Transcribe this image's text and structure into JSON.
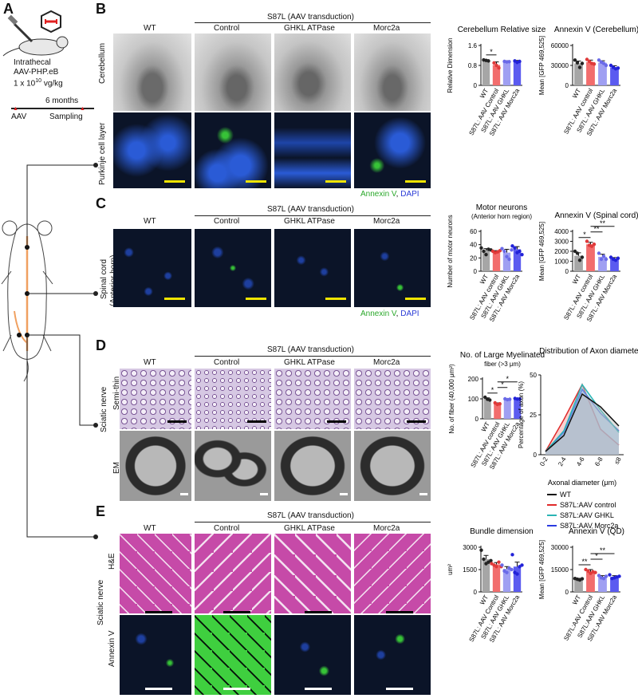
{
  "panel_letters": [
    "A",
    "B",
    "C",
    "D",
    "E"
  ],
  "panel_a": {
    "route": "Intrathecal",
    "vector": "AAV-PHP.eB",
    "dose_prefix": "1 x 10",
    "dose_exp": "10",
    "dose_unit": " vg/kg",
    "duration": "6 months",
    "start_label": "AAV",
    "end_label": "Sampling"
  },
  "group_header": "S87L (AAV transduction)",
  "column_headers": [
    "WT",
    "Control",
    "GHKL ATPase",
    "Morc2a"
  ],
  "rows": {
    "cerebellum": "Cerebellum",
    "purkinje": "Purkinje cell layer",
    "spinal_cord": "Spinal cord",
    "anterior_horn": "(Anterior horn)",
    "sciatic_nerve": "Sciatic nerve",
    "semi_thin": "Semi-thin",
    "em": "EM",
    "he": "H&E",
    "annexin": "Annexin V"
  },
  "stain_legend": {
    "annexin": "Annexin V",
    "sep": ",",
    "dapi": "DAPI"
  },
  "colors": {
    "wt": "#a6a6a6",
    "control": "#f26d6d",
    "ghkl": "#9f9ff2",
    "morc2a": "#5b5bf0",
    "fluor_bg": "#0b1428",
    "dapi": "#2a5bd6",
    "annexin": "#37c337",
    "he_bg": "#c64aa8",
    "semi_bg": "#d6c8e3",
    "scale_yellow": "#f0e400"
  },
  "chart_data": [
    {
      "id": "cereb_size",
      "type": "bar",
      "title": "Cerebellum Relative size",
      "subtitle": "",
      "ylabel": "Relative Dimension",
      "categories": [
        "WT",
        "S87L: AAV Control",
        "S87L: AAV GHKL",
        "S87L: AAV Morc2a"
      ],
      "values": [
        1.0,
        0.82,
        0.95,
        0.95
      ],
      "errors": [
        0.03,
        0.12,
        0.04,
        0.05
      ],
      "points": [
        [
          1.02,
          1.0,
          0.98
        ],
        [
          0.9,
          0.8,
          0.7
        ],
        [
          0.96,
          0.94,
          0.95
        ],
        [
          0.98,
          0.92,
          0.96
        ]
      ],
      "ylim": [
        0,
        1.6
      ],
      "yticks": [
        "0",
        "0.8",
        "1.6"
      ],
      "sig": [
        {
          "a": 0,
          "b": 1,
          "label": "*"
        }
      ]
    },
    {
      "id": "annexin_cereb",
      "type": "bar",
      "title": "Annexin V (Cerebellum)",
      "subtitle": "",
      "ylabel": "Mean [GFP 469,525]",
      "categories": [
        "WT",
        "S87L: AAV control",
        "S87L: AAV GHKL",
        "S87L: AAV Morc2a"
      ],
      "values": [
        33000,
        35000,
        34000,
        27000
      ],
      "errors": [
        3500,
        3000,
        3000,
        2500
      ],
      "points": [
        [
          38000,
          34000,
          27000,
          33000
        ],
        [
          39000,
          36000,
          33000,
          32000
        ],
        [
          38000,
          35000,
          33000,
          30000
        ],
        [
          30000,
          27000,
          25000,
          26000
        ]
      ],
      "ylim": [
        0,
        60000
      ],
      "yticks": [
        "0",
        "30000",
        "60000"
      ],
      "sig": []
    },
    {
      "id": "motor_neurons",
      "type": "bar",
      "title": "Motor neurons",
      "subtitle": "(Anterior horn region)",
      "ylabel": "Number of motor neurons",
      "categories": [
        "WT",
        "S87L: AAV control",
        "S87L: AAV GHKL",
        "S87L: AAV Morc2a"
      ],
      "values": [
        31,
        29,
        28,
        33
      ],
      "errors": [
        3,
        2,
        5,
        4
      ],
      "points": [
        [
          35,
          30,
          25,
          33,
          32
        ],
        [
          30,
          28,
          29,
          31
        ],
        [
          34,
          30,
          22,
          18,
          32
        ],
        [
          38,
          35,
          28,
          30,
          25
        ]
      ],
      "ylim": [
        0,
        60
      ],
      "yticks": [
        "0",
        "20",
        "40",
        "60"
      ],
      "sig": []
    },
    {
      "id": "annexin_spinal",
      "type": "bar",
      "title": "Annexin V  (Spinal cord)",
      "subtitle": "",
      "ylabel": "Mean [GFP 469,525]",
      "categories": [
        "WT",
        "S87L: AAV control",
        "S87L: AAV GHKL",
        "S87L: AAV Morc2a"
      ],
      "values": [
        1550,
        2700,
        1450,
        1250
      ],
      "errors": [
        300,
        200,
        250,
        120
      ],
      "points": [
        [
          2000,
          1800,
          1100,
          1400
        ],
        [
          3000,
          2600,
          2500,
          2700
        ],
        [
          1800,
          1200,
          1500,
          1200
        ],
        [
          1400,
          1200,
          1100,
          1300
        ]
      ],
      "ylim": [
        0,
        4000
      ],
      "yticks": [
        "0",
        "1000",
        "2000",
        "3000",
        "4000"
      ],
      "sig": [
        {
          "a": 0,
          "b": 1,
          "label": "*"
        },
        {
          "a": 1,
          "b": 2,
          "label": "**"
        },
        {
          "a": 1,
          "b": 3,
          "label": "**"
        }
      ]
    },
    {
      "id": "myelinated",
      "type": "bar",
      "title": "No. of Large Myelinated",
      "subtitle": "fiber (>3 μm)",
      "ylabel": "No. of fiber (40,000 μm²)",
      "categories": [
        "WT",
        "S87L: AAV control",
        "S87L: AAV GHKL",
        "S87L: AAV Morc2a"
      ],
      "values": [
        100,
        75,
        98,
        100
      ],
      "errors": [
        5,
        5,
        3,
        2
      ],
      "points": [
        [
          108,
          98,
          94
        ],
        [
          80,
          72,
          75
        ],
        [
          100,
          96,
          98
        ],
        [
          102,
          99,
          100
        ]
      ],
      "ylim": [
        0,
        200
      ],
      "yticks": [
        "0",
        "100",
        "200"
      ],
      "sig": [
        {
          "a": 0,
          "b": 1,
          "label": "*"
        },
        {
          "a": 1,
          "b": 2,
          "label": "*"
        },
        {
          "a": 1,
          "b": 3,
          "label": "*"
        }
      ]
    },
    {
      "id": "axon_dist",
      "type": "area",
      "title": "Distribution of Axon diameter",
      "ylabel": "Percentage of axon (%)",
      "xlabel": "Axonal diameter (μm)",
      "x": [
        "0-2",
        "2-4",
        "4-6",
        "6-8",
        "≤8"
      ],
      "ylim": [
        0,
        50
      ],
      "yticks": [
        "0",
        "25",
        "50"
      ],
      "series": [
        {
          "name": "WT",
          "values": [
            2,
            12,
            38,
            30,
            18
          ]
        },
        {
          "name": "S87L:AAV control",
          "values": [
            2,
            22,
            44,
            16,
            6
          ]
        },
        {
          "name": "S87L:AAV GHKL",
          "values": [
            2,
            15,
            44,
            28,
            14
          ]
        },
        {
          "name": "S87L:AAV Morc2a",
          "values": [
            2,
            14,
            41,
            26,
            15
          ]
        }
      ]
    },
    {
      "id": "bundle",
      "type": "bar",
      "title": "Bundle dimension",
      "subtitle": "",
      "ylabel": "um²",
      "categories": [
        "WT",
        "S87L: AAV Control",
        "S87L: AAV GHKL",
        "S87L: AAV Morc2a"
      ],
      "values": [
        2200,
        1850,
        1550,
        1700
      ],
      "errors": [
        250,
        120,
        150,
        300
      ],
      "points": [
        [
          2800,
          2200,
          1900,
          2000,
          2100
        ],
        [
          1900,
          1800,
          1700,
          2000,
          1700
        ],
        [
          1800,
          1400,
          1300,
          1600,
          1500
        ],
        [
          2500,
          1300,
          1200,
          1700,
          1800
        ]
      ],
      "ylim": [
        0,
        3000
      ],
      "yticks": [
        "0",
        "1500",
        "3000"
      ],
      "sig": []
    },
    {
      "id": "annexin_qd",
      "type": "bar",
      "title": "Annexin V (QD)",
      "subtitle": "",
      "ylabel": "Mean [GFP 469,525]",
      "categories": [
        "WT",
        "S87L:AAV Control",
        "S87L:AAV GHKL",
        "S87L:AAV Morc2a"
      ],
      "values": [
        8500,
        13500,
        10000,
        10000
      ],
      "errors": [
        600,
        1500,
        900,
        900
      ],
      "points": [
        [
          9000,
          8500,
          8000,
          8800
        ],
        [
          15000,
          14000,
          12500,
          13500,
          13000
        ],
        [
          11000,
          9500,
          9000,
          10500
        ],
        [
          11500,
          9000,
          9500,
          10000,
          10500
        ]
      ],
      "ylim": [
        0,
        30000
      ],
      "yticks": [
        "0",
        "15000",
        "30000"
      ],
      "sig": [
        {
          "a": 0,
          "b": 1,
          "label": "**"
        },
        {
          "a": 1,
          "b": 2,
          "label": "*"
        },
        {
          "a": 1,
          "b": 3,
          "label": "**"
        }
      ]
    }
  ]
}
